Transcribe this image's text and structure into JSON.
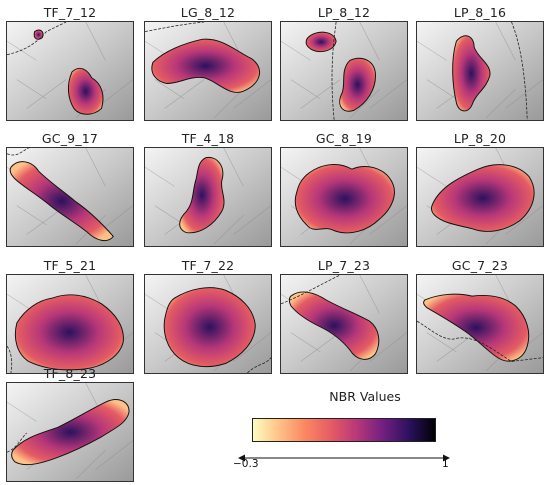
{
  "panels": [
    {
      "id": "TF_7_12",
      "title": "TF_7_12"
    },
    {
      "id": "LG_8_12",
      "title": "LG_8_12"
    },
    {
      "id": "LP_8_12",
      "title": "LP_8_12"
    },
    {
      "id": "LP_8_16",
      "title": "LP_8_16"
    },
    {
      "id": "GC_9_17",
      "title": "GC_9_17"
    },
    {
      "id": "TF_4_18",
      "title": "TF_4_18"
    },
    {
      "id": "GC_8_19",
      "title": "GC_8_19"
    },
    {
      "id": "LP_8_20",
      "title": "LP_8_20"
    },
    {
      "id": "TF_5_21",
      "title": "TF_5_21"
    },
    {
      "id": "TF_7_22",
      "title": "TF_7_22"
    },
    {
      "id": "LP_7_23",
      "title": "LP_7_23"
    },
    {
      "id": "GC_7_23",
      "title": "GC_7_23"
    },
    {
      "id": "TF_8_23",
      "title": "TF_8_23"
    }
  ],
  "legend": {
    "title": "NBR Values",
    "min_label": "−0.3",
    "max_label": "1",
    "min_value": -0.3,
    "max_value": 1,
    "colors": [
      "#fcfdbf",
      "#fec287",
      "#fb8761",
      "#e55c63",
      "#b73779",
      "#721f81",
      "#2c115f",
      "#000004"
    ]
  }
}
